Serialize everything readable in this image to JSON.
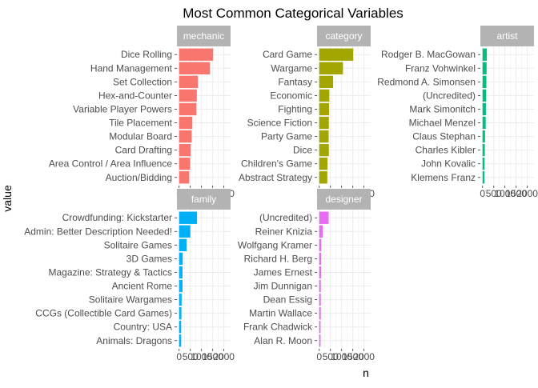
{
  "chart_data": {
    "type": "bar",
    "title": "Most Common Categorical Variables",
    "xlabel": "n",
    "ylabel": "value",
    "xlim": [
      0,
      2200
    ],
    "x_ticks": [
      0,
      500,
      1000,
      1500,
      2000
    ],
    "x_tick_labels": [
      "0",
      "500",
      "1000",
      "1500",
      "2000"
    ],
    "grid": true,
    "legend": "none",
    "panels": [
      {
        "name": "mechanic",
        "color": "#F8766D",
        "categories": [
          "Dice Rolling",
          "Hand Management",
          "Set Collection",
          "Hex-and-Counter",
          "Variable Player Powers",
          "Tile Placement",
          "Modular Board",
          "Card Drafting",
          "Area Control / Area Influence",
          "Auction/Bidding"
        ],
        "values": [
          1520,
          1380,
          840,
          790,
          770,
          590,
          560,
          520,
          490,
          450
        ]
      },
      {
        "name": "category",
        "color": "#A3A500",
        "categories": [
          "Card Game",
          "Wargame",
          "Fantasy",
          "Economic",
          "Fighting",
          "Science Fiction",
          "Party Game",
          "Dice",
          "Children's Game",
          "Abstract Strategy"
        ],
        "values": [
          1520,
          1060,
          620,
          450,
          440,
          430,
          420,
          430,
          370,
          360
        ]
      },
      {
        "name": "artist",
        "color": "#00BF7D",
        "categories": [
          "Rodger B. MacGowan",
          "Franz Vohwinkel",
          "Redmond A. Simonsen",
          "(Uncredited)",
          "Mark Simonitch",
          "Michael Menzel",
          "Claus Stephan",
          "Charles Kibler",
          "John Kovalic",
          "Klemens Franz"
        ],
        "values": [
          190,
          180,
          170,
          160,
          150,
          140,
          110,
          100,
          90,
          80
        ]
      },
      {
        "name": "family",
        "color": "#00B0F6",
        "categories": [
          "Crowdfunding: Kickstarter",
          "Admin: Better Description Needed!",
          "Solitaire Games",
          "3D Games",
          "Magazine: Strategy & Tactics",
          "Ancient Rome",
          "Solitaire Wargames",
          "CCGs (Collectible Card Games)",
          "Country: USA",
          "Animals: Dragons"
        ],
        "values": [
          800,
          500,
          330,
          160,
          150,
          150,
          110,
          100,
          90,
          90
        ]
      },
      {
        "name": "designer",
        "color": "#E76BF3",
        "categories": [
          "(Uncredited)",
          "Reiner Knizia",
          "Wolfgang Kramer",
          "Richard H. Berg",
          "James Ernest",
          "Jim Dunnigan",
          "Dean Essig",
          "Martin Wallace",
          "Frank Chadwick",
          "Alan R. Moon"
        ],
        "values": [
          420,
          160,
          90,
          80,
          80,
          70,
          70,
          70,
          60,
          60
        ]
      }
    ]
  }
}
